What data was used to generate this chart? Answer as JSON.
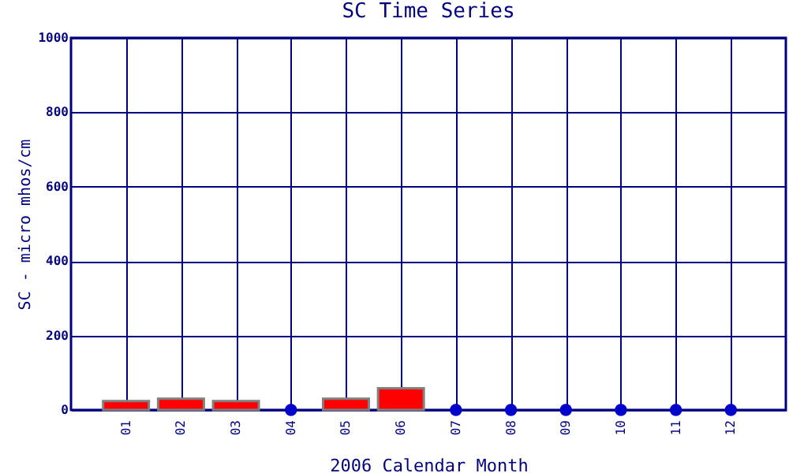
{
  "chart_data": {
    "type": "bar",
    "title": "SC Time Series",
    "xlabel": "2006 Calendar Month",
    "ylabel": "SC - micro mhos/cm",
    "categories": [
      "01",
      "02",
      "03",
      "04",
      "05",
      "06",
      "07",
      "08",
      "09",
      "10",
      "11",
      "12"
    ],
    "series": [
      {
        "color": "#ff0000",
        "values": [
          24,
          30,
          24,
          null,
          30,
          58,
          null,
          null,
          null,
          null,
          null,
          null
        ]
      },
      {
        "type": "scatter",
        "color": "#0000cc",
        "values": [
          null,
          null,
          null,
          0,
          null,
          null,
          0,
          0,
          0,
          0,
          0,
          0
        ]
      }
    ],
    "ylim": [
      0,
      1000
    ],
    "yticks": [
      0,
      200,
      400,
      600,
      800,
      1000
    ],
    "grid": true,
    "marker": "circle"
  }
}
